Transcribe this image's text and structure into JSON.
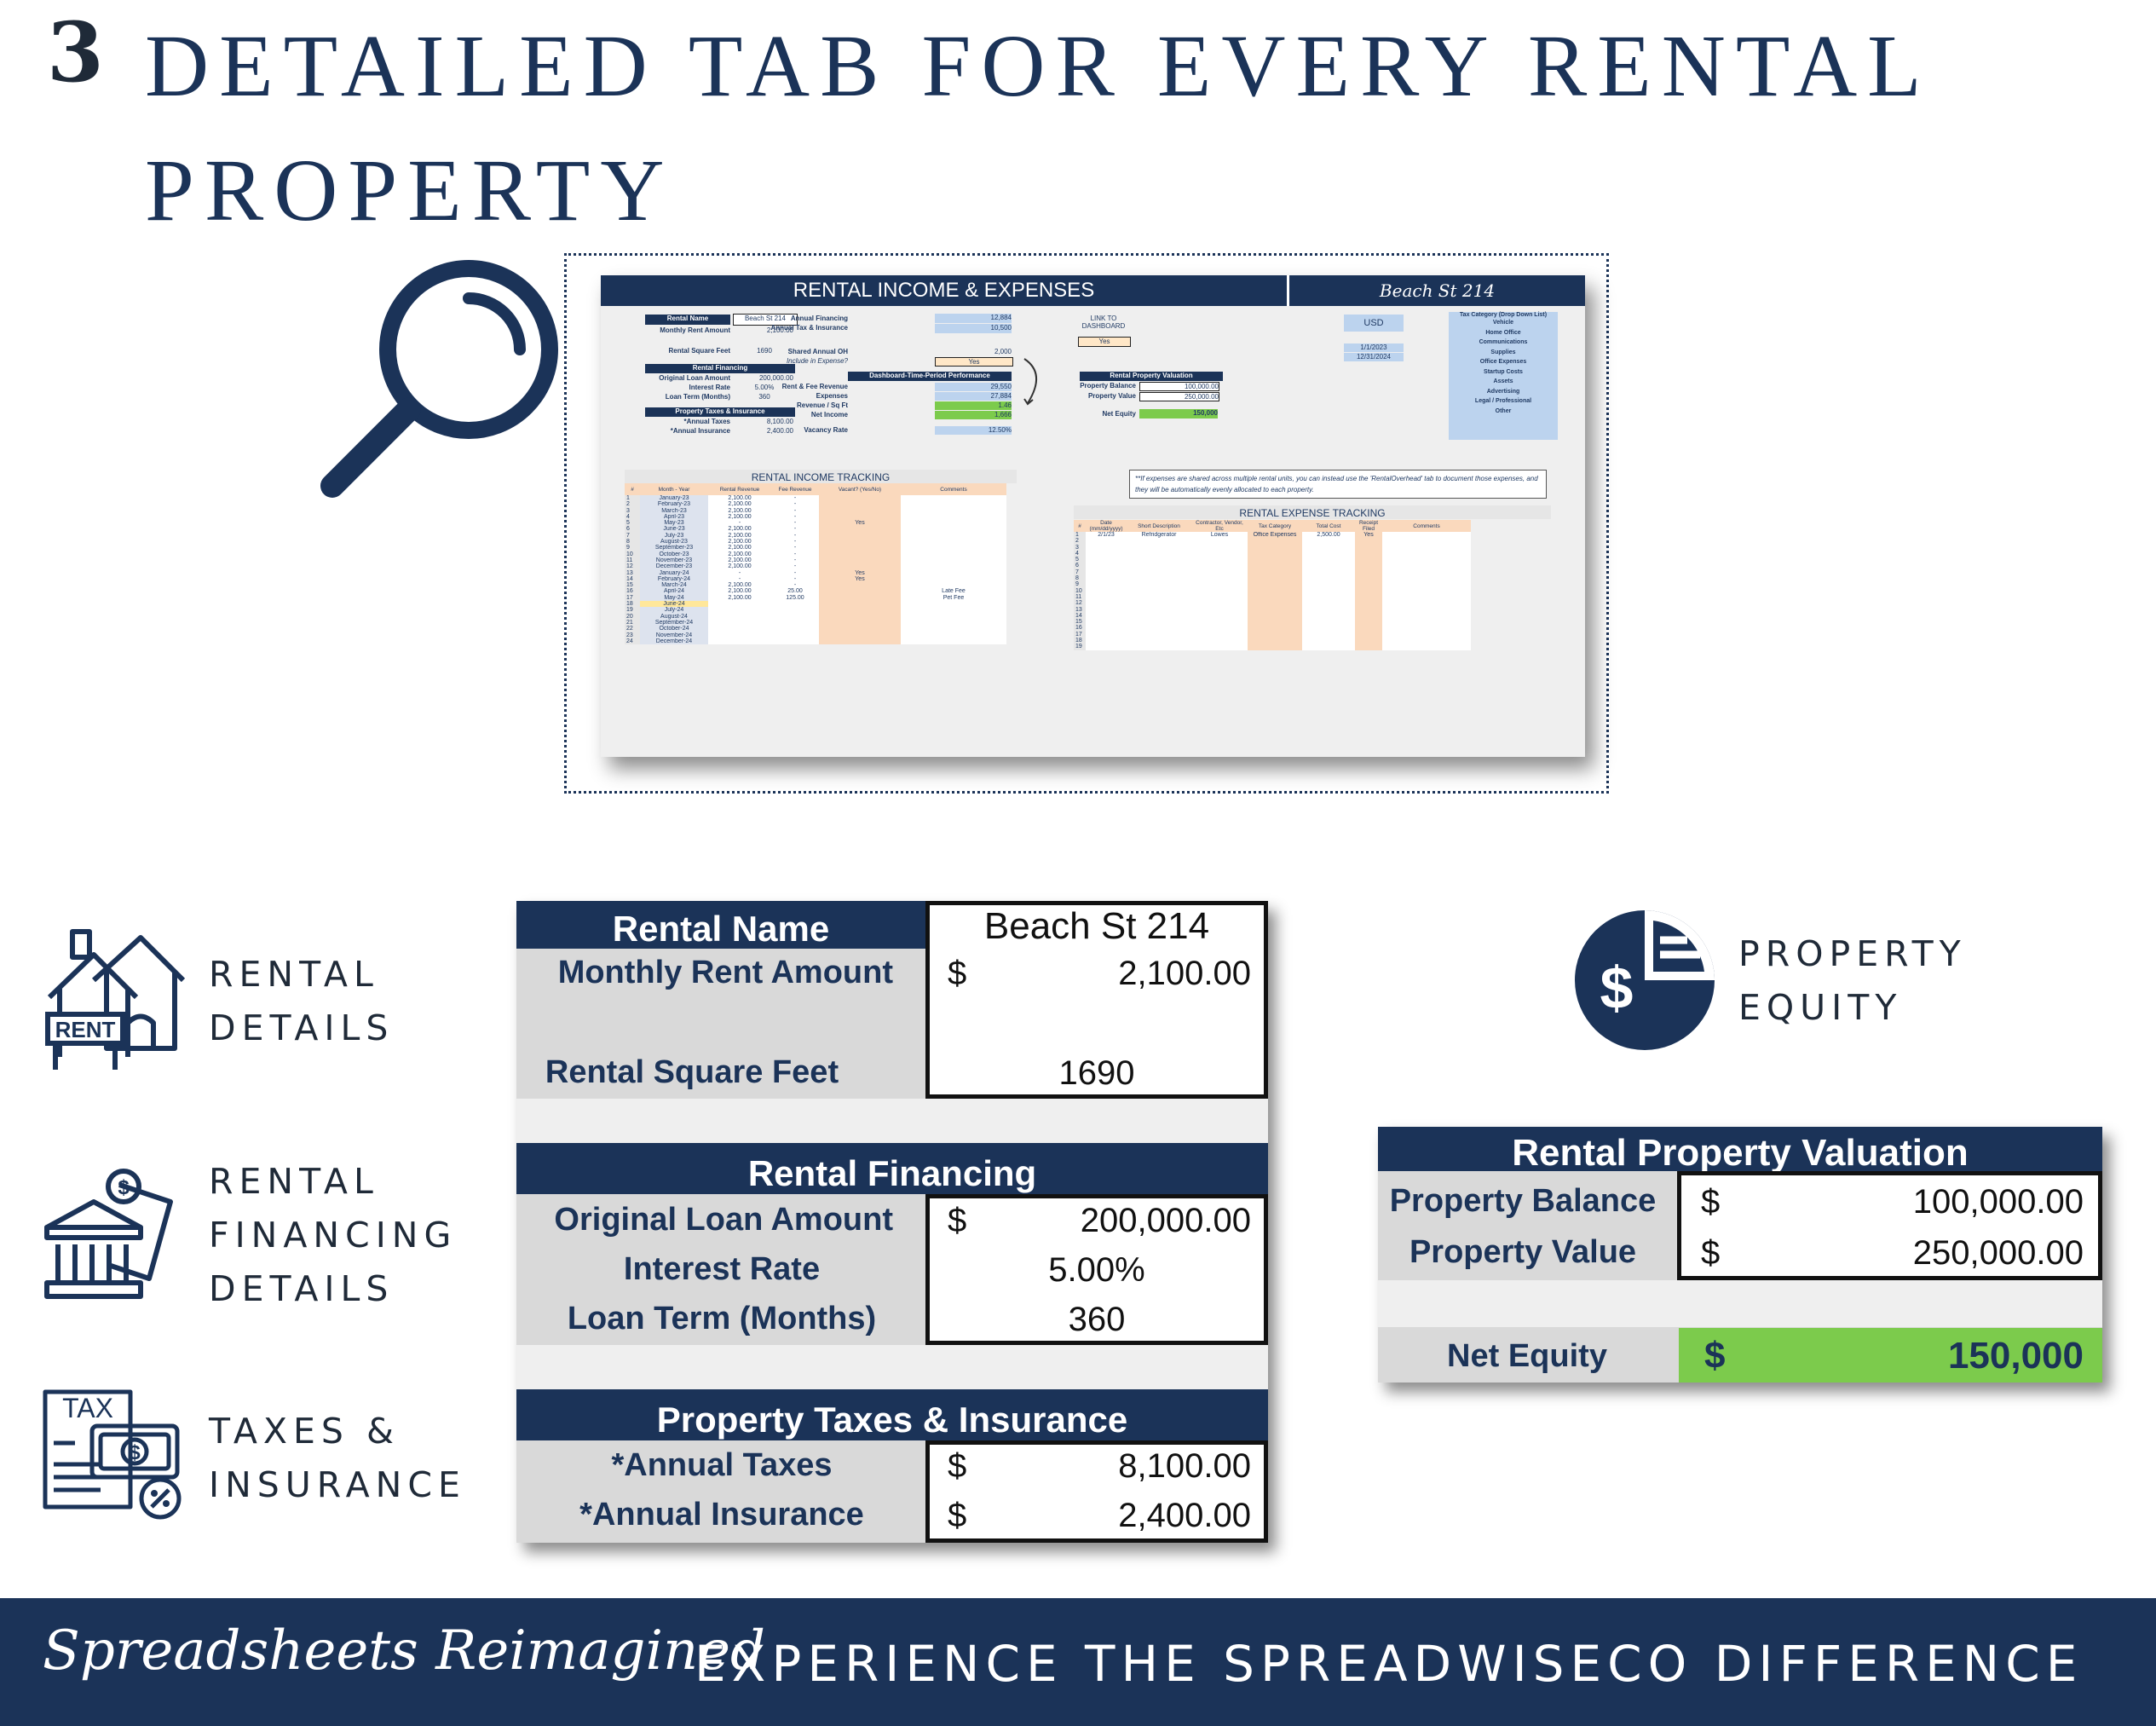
{
  "header": {
    "number": "3",
    "title": "DETAILED TAB FOR EVERY RENTAL PROPERTY"
  },
  "preview": {
    "title": "RENTAL INCOME & EXPENSES",
    "property": "Beach St 214",
    "rental_name_lbl": "Rental Name",
    "rental_name_val": "Beach St 214",
    "rent_lbl": "Monthly Rent Amount",
    "rent_val": "2,100.00",
    "sqft_lbl": "Rental Square Feet",
    "sqft_val": "1690",
    "fin_hdr": "Rental Financing",
    "loan_lbl": "Original Loan Amount",
    "loan_val": "200,000.00",
    "rate_lbl": "Interest Rate",
    "rate_val": "5.00%",
    "term_lbl": "Loan Term (Months)",
    "term_val": "360",
    "tax_hdr": "Property Taxes & Insurance",
    "taxes_lbl": "*Annual Taxes",
    "taxes_val": "8,100.00",
    "ins_lbl": "*Annual Insurance",
    "ins_val": "2,400.00",
    "annual_fin_lbl": "Annual Financing",
    "annual_fin_val": "12,884",
    "annual_tax_lbl": "Annual Tax & Insurance",
    "annual_tax_val": "10,500",
    "shared_lbl": "Shared Annual OH",
    "shared_val": "2,000",
    "include_lbl": "Include in Expense?",
    "include_val": "Yes",
    "perf_hdr": "Dashboard-Time-Period Performance",
    "revenue_lbl": "Rent & Fee Revenue",
    "revenue_val": "29,550",
    "expenses_lbl": "Expenses",
    "expenses_val": "27,884",
    "rev_sqft_lbl": "Revenue / Sq Ft",
    "rev_sqft_val": "1.46",
    "net_lbl": "Net Income",
    "net_val": "1,666",
    "vacancy_lbl": "Vacancy Rate",
    "vacancy_val": "12.50%",
    "link_lbl": "LINK TO DASHBOARD",
    "link_val": "Yes",
    "val_hdr": "Rental Property Valuation",
    "pb_lbl": "Property Balance",
    "pb_val": "100,000.00",
    "pv_lbl": "Property Value",
    "pv_val": "250,000.00",
    "ne_lbl": "Net Equity",
    "ne_val": "150,000",
    "currency": "USD",
    "date_start": "1/1/2023",
    "date_end": "12/31/2024",
    "tax_cat_hdr": "Tax Category (Drop Down List)",
    "tax_categories": [
      "Vehicle",
      "Home Office",
      "Communications",
      "Supplies",
      "Office Expenses",
      "Startup Costs",
      "Assets",
      "Advertising",
      "Legal / Professional",
      "Other"
    ],
    "note": "**If expenses are shared across multiple rental units, you can instead use the 'RentalOverhead' tab to document those expenses, and they will be automatically evenly allocated to each property.",
    "income_title": "RENTAL INCOME TRACKING",
    "income_cols": [
      "#",
      "Month - Year",
      "Rental Revenue",
      "Fee Revenue",
      "Vacant? (Yes/No)",
      "Comments"
    ],
    "income_rows": [
      [
        "1",
        "January-23",
        "2,100.00",
        "-",
        "",
        ""
      ],
      [
        "2",
        "February-23",
        "2,100.00",
        "-",
        "",
        ""
      ],
      [
        "3",
        "March-23",
        "2,100.00",
        "-",
        "",
        ""
      ],
      [
        "4",
        "April-23",
        "2,100.00",
        "-",
        "",
        ""
      ],
      [
        "5",
        "May-23",
        "-",
        "-",
        "Yes",
        ""
      ],
      [
        "6",
        "June-23",
        "2,100.00",
        "-",
        "",
        ""
      ],
      [
        "7",
        "July-23",
        "2,100.00",
        "-",
        "",
        ""
      ],
      [
        "8",
        "August-23",
        "2,100.00",
        "-",
        "",
        ""
      ],
      [
        "9",
        "September-23",
        "2,100.00",
        "-",
        "",
        ""
      ],
      [
        "10",
        "October-23",
        "2,100.00",
        "-",
        "",
        ""
      ],
      [
        "11",
        "November-23",
        "2,100.00",
        "-",
        "",
        ""
      ],
      [
        "12",
        "December-23",
        "2,100.00",
        "-",
        "",
        ""
      ],
      [
        "13",
        "January-24",
        "-",
        "-",
        "Yes",
        ""
      ],
      [
        "14",
        "February-24",
        "-",
        "-",
        "Yes",
        ""
      ],
      [
        "15",
        "March-24",
        "2,100.00",
        "-",
        "",
        ""
      ],
      [
        "16",
        "April-24",
        "2,100.00",
        "25.00",
        "",
        "Late Fee"
      ],
      [
        "17",
        "May-24",
        "2,100.00",
        "125.00",
        "",
        "Pet Fee"
      ],
      [
        "18",
        "June-24",
        "",
        "",
        "",
        ""
      ],
      [
        "19",
        "July-24",
        "",
        "",
        "",
        ""
      ],
      [
        "20",
        "August-24",
        "",
        "",
        "",
        ""
      ],
      [
        "21",
        "September-24",
        "",
        "",
        "",
        ""
      ],
      [
        "22",
        "October-24",
        "",
        "",
        "",
        ""
      ],
      [
        "23",
        "November-24",
        "",
        "",
        "",
        ""
      ],
      [
        "24",
        "December-24",
        "",
        "",
        "",
        ""
      ]
    ],
    "expense_title": "RENTAL EXPENSE TRACKING",
    "expense_cols": [
      "#",
      "Date (mm/dd/yyyy)",
      "Short Description",
      "Contractor, Vendor, Etc",
      "Tax Category",
      "Total Cost",
      "Receipt Filed",
      "Comments"
    ],
    "expense_rows": [
      [
        "1",
        "2/1/23",
        "Refridgerator",
        "Lowes",
        "Office Expenses",
        "2,500.00",
        "Yes",
        ""
      ],
      [
        "2",
        "",
        "",
        "",
        "",
        "",
        "",
        ""
      ],
      [
        "3",
        "",
        "",
        "",
        "",
        "",
        "",
        ""
      ],
      [
        "4",
        "",
        "",
        "",
        "",
        "",
        "",
        ""
      ],
      [
        "5",
        "",
        "",
        "",
        "",
        "",
        "",
        ""
      ],
      [
        "6",
        "",
        "",
        "",
        "",
        "",
        "",
        ""
      ],
      [
        "7",
        "",
        "",
        "",
        "",
        "",
        "",
        ""
      ],
      [
        "8",
        "",
        "",
        "",
        "",
        "",
        "",
        ""
      ],
      [
        "9",
        "",
        "",
        "",
        "",
        "",
        "",
        ""
      ],
      [
        "10",
        "",
        "",
        "",
        "",
        "",
        "",
        ""
      ],
      [
        "11",
        "",
        "",
        "",
        "",
        "",
        "",
        ""
      ],
      [
        "12",
        "",
        "",
        "",
        "",
        "",
        "",
        ""
      ],
      [
        "13",
        "",
        "",
        "",
        "",
        "",
        "",
        ""
      ],
      [
        "14",
        "",
        "",
        "",
        "",
        "",
        "",
        ""
      ],
      [
        "15",
        "",
        "",
        "",
        "",
        "",
        "",
        ""
      ],
      [
        "16",
        "",
        "",
        "",
        "",
        "",
        "",
        ""
      ],
      [
        "17",
        "",
        "",
        "",
        "",
        "",
        "",
        ""
      ],
      [
        "18",
        "",
        "",
        "",
        "",
        "",
        "",
        ""
      ],
      [
        "19",
        "",
        "",
        "",
        "",
        "",
        "",
        ""
      ]
    ]
  },
  "side_labels": {
    "rental": "RENTAL DETAILS",
    "financing": "RENTAL FINANCING DETAILS",
    "taxes": "TAXES & INSURANCE",
    "equity": "PROPERTY EQUITY"
  },
  "icons": {
    "rent_sign": "RENT",
    "tax_doc": "TAX"
  },
  "details": {
    "rental_name_lbl": "Rental Name",
    "rental_name_val": "Beach St 214",
    "rent_lbl": "Monthly Rent Amount",
    "rent_cur": "$",
    "rent_val": "2,100.00",
    "sqft_lbl": "Rental Square Feet",
    "sqft_val": "1690",
    "fin_hdr": "Rental Financing",
    "loan_lbl": "Original Loan Amount",
    "loan_cur": "$",
    "loan_val": "200,000.00",
    "rate_lbl": "Interest Rate",
    "rate_val": "5.00%",
    "term_lbl": "Loan Term (Months)",
    "term_val": "360",
    "tax_hdr": "Property Taxes & Insurance",
    "taxes_lbl": "*Annual Taxes",
    "taxes_cur": "$",
    "taxes_val": "8,100.00",
    "ins_lbl": "*Annual Insurance",
    "ins_cur": "$",
    "ins_val": "2,400.00"
  },
  "valuation": {
    "hdr": "Rental Property Valuation",
    "pb_lbl": "Property Balance",
    "pb_cur": "$",
    "pb_val": "100,000.00",
    "pv_lbl": "Property Value",
    "pv_cur": "$",
    "pv_val": "250,000.00",
    "ne_lbl": "Net Equity",
    "ne_cur": "$",
    "ne_val": "150,000"
  },
  "footer": {
    "script": "Spreadsheets Reimagined",
    "tagline": "EXPERIENCE THE SPREADWISECO DIFFERENCE"
  },
  "colors": {
    "navy": "#1b3358",
    "green": "#7ccb4c",
    "grey": "#d9d9d9",
    "peach": "#fad9bd",
    "light_blue": "#bcd3ee"
  }
}
